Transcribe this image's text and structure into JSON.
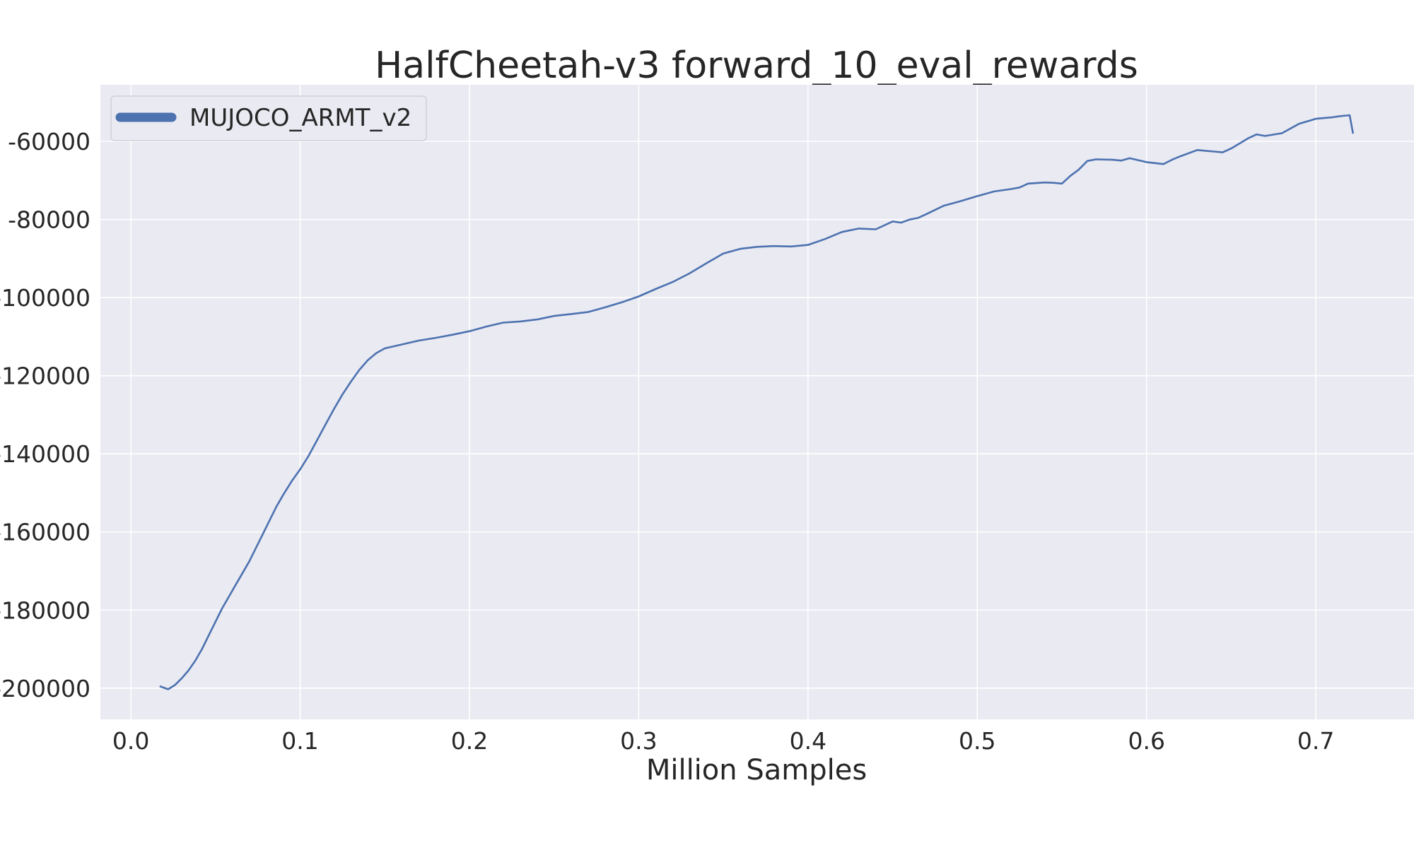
{
  "chart_data": {
    "type": "line",
    "title": "HalfCheetah-v3 forward_10_eval_rewards",
    "xlabel": "Million Samples",
    "ylabel": "",
    "xlim": [
      -0.018,
      0.758
    ],
    "ylim": [
      -208000,
      -45500
    ],
    "xticks": [
      0.0,
      0.1,
      0.2,
      0.3,
      0.4,
      0.5,
      0.6,
      0.7
    ],
    "xtick_labels": [
      "0.0",
      "0.1",
      "0.2",
      "0.3",
      "0.4",
      "0.5",
      "0.6",
      "0.7"
    ],
    "yticks": [
      -60000,
      -80000,
      -100000,
      -120000,
      -140000,
      -160000,
      -180000,
      -200000
    ],
    "ytick_labels": [
      "-60000",
      "-80000",
      "-100000",
      "-120000",
      "-140000",
      "-160000",
      "-180000",
      "-200000"
    ],
    "grid": true,
    "legend_position": "top-left",
    "background": "#eaeaf2",
    "series": [
      {
        "name": "MUJOCO_ARMT_v2",
        "color": "#4c72b0",
        "x": [
          0.017,
          0.022,
          0.026,
          0.03,
          0.034,
          0.038,
          0.042,
          0.046,
          0.05,
          0.054,
          0.058,
          0.062,
          0.066,
          0.07,
          0.074,
          0.078,
          0.082,
          0.086,
          0.09,
          0.095,
          0.1,
          0.105,
          0.11,
          0.115,
          0.12,
          0.125,
          0.13,
          0.135,
          0.14,
          0.145,
          0.15,
          0.16,
          0.17,
          0.18,
          0.19,
          0.2,
          0.21,
          0.22,
          0.23,
          0.24,
          0.25,
          0.26,
          0.27,
          0.28,
          0.29,
          0.3,
          0.31,
          0.32,
          0.33,
          0.34,
          0.35,
          0.36,
          0.37,
          0.38,
          0.39,
          0.4,
          0.41,
          0.42,
          0.43,
          0.44,
          0.45,
          0.455,
          0.46,
          0.465,
          0.47,
          0.48,
          0.49,
          0.5,
          0.51,
          0.52,
          0.525,
          0.53,
          0.54,
          0.545,
          0.55,
          0.555,
          0.56,
          0.565,
          0.57,
          0.58,
          0.585,
          0.59,
          0.6,
          0.61,
          0.615,
          0.62,
          0.63,
          0.635,
          0.64,
          0.645,
          0.65,
          0.66,
          0.665,
          0.67,
          0.68,
          0.69,
          0.7,
          0.71,
          0.715,
          0.72,
          0.722
        ],
        "y": [
          -199500,
          -200300,
          -199200,
          -197500,
          -195500,
          -193000,
          -190000,
          -186500,
          -183000,
          -179500,
          -176500,
          -173500,
          -170500,
          -167500,
          -164000,
          -160500,
          -157000,
          -153500,
          -150500,
          -147000,
          -144000,
          -140500,
          -136500,
          -132500,
          -128500,
          -124800,
          -121500,
          -118500,
          -116000,
          -114200,
          -113000,
          -112000,
          -111000,
          -110300,
          -109500,
          -108600,
          -107400,
          -106400,
          -106100,
          -105600,
          -104700,
          -104200,
          -103700,
          -102500,
          -101200,
          -99700,
          -97800,
          -96000,
          -93800,
          -91200,
          -88700,
          -87500,
          -87000,
          -86800,
          -86900,
          -86500,
          -85000,
          -83200,
          -82300,
          -82500,
          -80500,
          -80800,
          -80000,
          -79600,
          -78600,
          -76500,
          -75300,
          -74000,
          -72800,
          -72200,
          -71800,
          -70800,
          -70500,
          -70600,
          -70800,
          -68800,
          -67200,
          -65000,
          -64600,
          -64700,
          -64900,
          -64300,
          -65300,
          -65800,
          -64700,
          -63800,
          -62200,
          -62400,
          -62600,
          -62800,
          -61800,
          -59200,
          -58200,
          -58600,
          -57900,
          -55500,
          -54200,
          -53800,
          -53500,
          -53300,
          -58000
        ]
      }
    ]
  }
}
